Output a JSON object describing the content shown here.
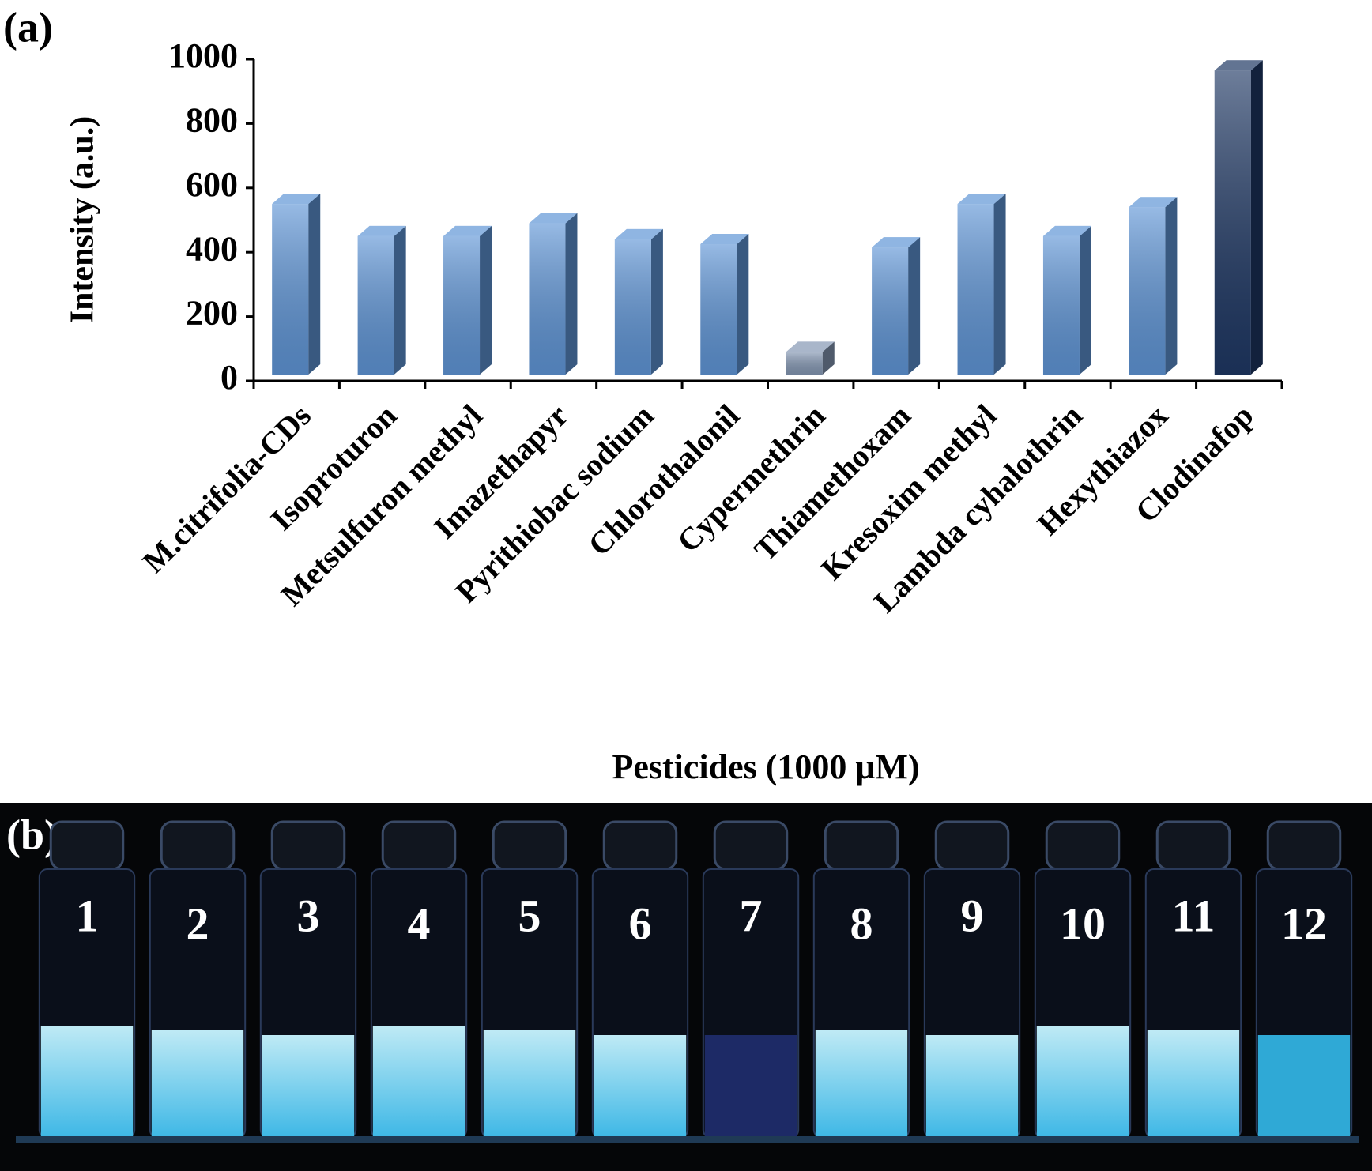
{
  "chart_data": {
    "type": "bar3d",
    "panel_label": "(a)",
    "ylabel": "Intensity (a.u.)",
    "xlabel": "Pesticides (1000 μM)",
    "categories": [
      "M.citrifolia-CDs",
      "Isoproturon",
      "Metsulfuron methyl",
      "Imazethapyr",
      "Pyrithiobac sodium",
      "Chlorothalonil",
      "Cypermethrin",
      "Thiamethoxam",
      "Kresoxim methyl",
      "Lambda cyhalothrin",
      "Hexythiazox",
      "Clodinafop"
    ],
    "values": [
      550,
      450,
      450,
      490,
      440,
      425,
      90,
      415,
      550,
      450,
      540,
      965
    ],
    "colors": [
      "#5f95d6",
      "#5f95d6",
      "#5f95d6",
      "#5f95d6",
      "#5f95d6",
      "#5f95d6",
      "#8497b3",
      "#5f95d6",
      "#5f95d6",
      "#5f95d6",
      "#5f95d6",
      "#1f3864"
    ],
    "ylim": [
      0,
      1000
    ],
    "yticks": [
      0,
      200,
      400,
      600,
      800,
      1000
    ]
  },
  "photo": {
    "panel_label": "(b)",
    "vial_labels": [
      "1",
      "2",
      "3",
      "4",
      "5",
      "6",
      "7",
      "8",
      "9",
      "10",
      "11",
      "12"
    ]
  }
}
